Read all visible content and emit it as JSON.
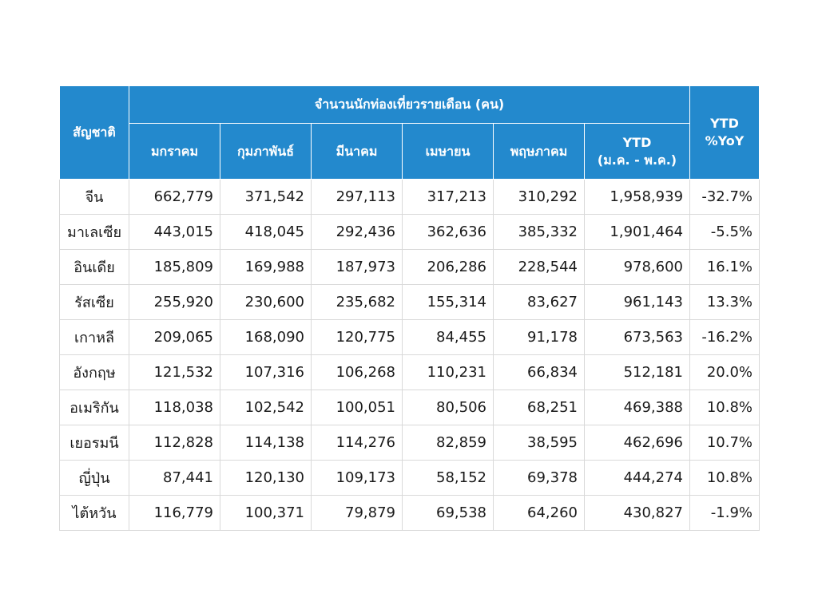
{
  "table": {
    "header": {
      "nationality": "สัญชาติ",
      "group": "จำนวนนักท่องเที่ยวรายเดือน (คน)",
      "months": [
        "มกราคม",
        "กุมภาพันธ์",
        "มีนาคม",
        "เมษายน",
        "พฤษภาคม"
      ],
      "ytd_line1": "YTD",
      "ytd_line2": "(ม.ค. - พ.ค.)",
      "yoy_line1": "YTD",
      "yoy_line2": "%YoY"
    },
    "rows": [
      {
        "name": "จีน",
        "jan": "662,779",
        "feb": "371,542",
        "mar": "297,113",
        "apr": "317,213",
        "may": "310,292",
        "ytd": "1,958,939",
        "yoy": "-32.7%"
      },
      {
        "name": "มาเลเซีย",
        "jan": "443,015",
        "feb": "418,045",
        "mar": "292,436",
        "apr": "362,636",
        "may": "385,332",
        "ytd": "1,901,464",
        "yoy": "-5.5%"
      },
      {
        "name": "อินเดีย",
        "jan": "185,809",
        "feb": "169,988",
        "mar": "187,973",
        "apr": "206,286",
        "may": "228,544",
        "ytd": "978,600",
        "yoy": "16.1%"
      },
      {
        "name": "รัสเซีย",
        "jan": "255,920",
        "feb": "230,600",
        "mar": "235,682",
        "apr": "155,314",
        "may": "83,627",
        "ytd": "961,143",
        "yoy": "13.3%"
      },
      {
        "name": "เกาหลี",
        "jan": "209,065",
        "feb": "168,090",
        "mar": "120,775",
        "apr": "84,455",
        "may": "91,178",
        "ytd": "673,563",
        "yoy": "-16.2%"
      },
      {
        "name": "อังกฤษ",
        "jan": "121,532",
        "feb": "107,316",
        "mar": "106,268",
        "apr": "110,231",
        "may": "66,834",
        "ytd": "512,181",
        "yoy": "20.0%"
      },
      {
        "name": "อเมริกัน",
        "jan": "118,038",
        "feb": "102,542",
        "mar": "100,051",
        "apr": "80,506",
        "may": "68,251",
        "ytd": "469,388",
        "yoy": "10.8%"
      },
      {
        "name": "เยอรมนี",
        "jan": "112,828",
        "feb": "114,138",
        "mar": "114,276",
        "apr": "82,859",
        "may": "38,595",
        "ytd": "462,696",
        "yoy": "10.7%"
      },
      {
        "name": "ญี่ปุ่น",
        "jan": "87,441",
        "feb": "120,130",
        "mar": "109,173",
        "apr": "58,152",
        "may": "69,378",
        "ytd": "444,274",
        "yoy": "10.8%"
      },
      {
        "name": "ไต้หวัน",
        "jan": "116,779",
        "feb": "100,371",
        "mar": "79,879",
        "apr": "69,538",
        "may": "64,260",
        "ytd": "430,827",
        "yoy": "-1.9%"
      }
    ]
  },
  "colors": {
    "header_bg": "#2389cd",
    "header_text": "#ffffff",
    "grid": "#d9d9d9"
  }
}
